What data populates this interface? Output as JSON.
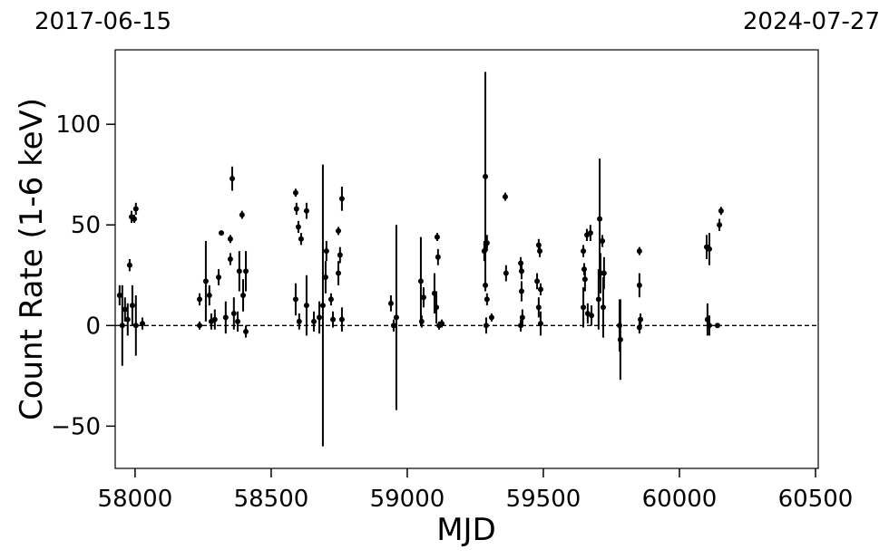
{
  "chart_data": {
    "type": "errorbar-scatter",
    "xlabel": "MJD",
    "ylabel": "Count Rate (1-6 keV)",
    "annotations": [
      "2017-06-15",
      "2024-07-27"
    ],
    "hline": 0,
    "xlim": [
      57927,
      60510
    ],
    "ylim": [
      -71,
      137
    ],
    "xticks": [
      58000,
      58500,
      59000,
      59500,
      60000,
      60500
    ],
    "yticks": [
      {
        "value": -50,
        "label": "−50"
      },
      0,
      50,
      100
    ],
    "series": [
      {
        "color": "#000000",
        "x": [
          57943,
          57953,
          57963,
          57980,
          57987,
          57997,
          58003,
          57990,
          58003,
          58027,
          57973,
          58237,
          58237,
          58260,
          58273,
          58280,
          58293,
          58307,
          58317,
          58333,
          58350,
          58357,
          58350,
          58363,
          58383,
          58393,
          58397,
          58407,
          58407,
          58377,
          58590,
          58593,
          58600,
          58610,
          58590,
          58603,
          58630,
          58630,
          58657,
          58677,
          58690,
          58703,
          58700,
          58720,
          58727,
          58747,
          58747,
          58753,
          58760,
          58760,
          58940,
          58950,
          58960,
          59050,
          59060,
          59053,
          59100,
          59107,
          59110,
          59113,
          59117,
          59127,
          59287,
          59283,
          59293,
          59287,
          59293,
          59290,
          59310,
          59360,
          59363,
          59417,
          59420,
          59420,
          59423,
          59417,
          59477,
          59483,
          59487,
          59490,
          59483,
          59490,
          59647,
          59650,
          59653,
          59660,
          59673,
          59647,
          59663,
          59677,
          59707,
          59710,
          59717,
          59723,
          59703,
          59720,
          59783,
          59780,
          59853,
          59853,
          59857,
          59853,
          60100,
          60110,
          60103,
          60110,
          60140,
          60147,
          60153
        ],
        "values": [
          15,
          0,
          8,
          30,
          54,
          53,
          58,
          10,
          0,
          1,
          3,
          13,
          0,
          22,
          15,
          2,
          3,
          24,
          46,
          4,
          43,
          73,
          33,
          6,
          27,
          55,
          15,
          27,
          -3,
          2,
          66,
          58,
          49,
          43,
          13,
          2,
          57,
          10,
          2,
          4,
          10,
          37,
          24,
          13,
          3,
          47,
          26,
          35,
          63,
          3,
          11,
          0,
          4,
          22,
          14,
          2,
          16,
          9,
          44,
          34,
          0,
          1,
          74,
          37,
          41,
          20,
          13,
          0,
          4,
          64,
          26,
          31,
          27,
          17,
          4,
          0,
          22,
          40,
          37,
          18,
          9,
          1,
          37,
          28,
          23,
          45,
          46,
          9,
          6,
          5,
          53,
          26,
          42,
          26,
          13,
          9,
          -7,
          0,
          37,
          20,
          3,
          -1,
          39,
          38,
          3,
          0,
          0,
          50,
          57
        ],
        "errors": [
          5,
          20,
          6,
          3,
          3,
          2,
          3,
          10,
          15,
          3,
          8,
          3,
          2,
          20,
          5,
          4,
          5,
          4,
          1,
          8,
          2,
          6,
          3,
          8,
          10,
          2,
          8,
          10,
          3,
          5,
          2,
          3,
          3,
          3,
          8,
          4,
          4,
          15,
          5,
          8,
          70,
          5,
          8,
          3,
          4,
          2,
          6,
          4,
          6,
          6,
          4,
          3,
          46,
          22,
          5,
          3,
          10,
          8,
          2,
          4,
          2,
          2,
          52,
          5,
          4,
          3,
          3,
          4,
          2,
          2,
          4,
          3,
          4,
          5,
          4,
          3,
          4,
          3,
          3,
          3,
          5,
          6,
          3,
          3,
          6,
          3,
          4,
          10,
          5,
          5,
          30,
          10,
          3,
          8,
          15,
          15,
          20,
          13,
          2,
          6,
          3,
          3,
          6,
          8,
          8,
          5,
          1,
          3,
          2
        ]
      }
    ]
  }
}
